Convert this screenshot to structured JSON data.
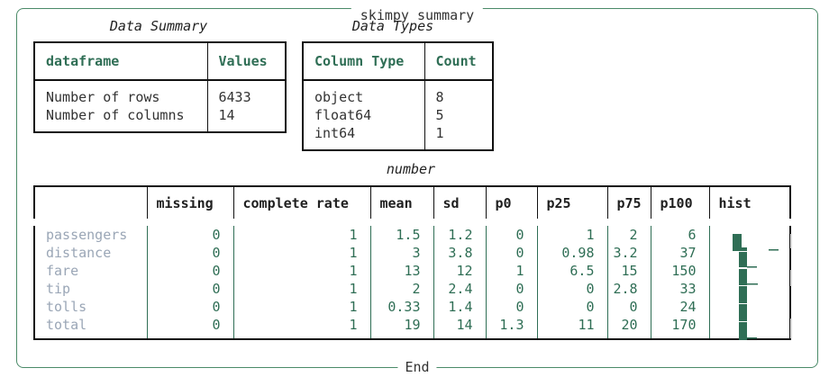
{
  "panel": {
    "title": "skimpy summary",
    "footer": "End"
  },
  "data_summary": {
    "caption": "Data Summary",
    "headers": [
      "dataframe",
      "Values"
    ],
    "rows": [
      [
        "Number of rows",
        "6433"
      ],
      [
        "Number of columns",
        "14"
      ]
    ]
  },
  "data_types": {
    "caption": "Data Types",
    "headers": [
      "Column Type",
      "Count"
    ],
    "rows": [
      [
        "object",
        "8"
      ],
      [
        "float64",
        "5"
      ],
      [
        "int64",
        "1"
      ]
    ]
  },
  "number": {
    "caption": "number",
    "headers": [
      "",
      "missing",
      "complete rate",
      "mean",
      "sd",
      "p0",
      "p25",
      "p75",
      "p100",
      "hist"
    ],
    "rows": [
      [
        "passengers",
        "0",
        "1",
        "1.5",
        "1.2",
        "0",
        "1",
        "2",
        "6"
      ],
      [
        "distance",
        "0",
        "1",
        "3",
        "3.8",
        "0",
        "0.98",
        "3.2",
        "37"
      ],
      [
        "fare",
        "0",
        "1",
        "13",
        "12",
        "1",
        "6.5",
        "15",
        "150"
      ],
      [
        "tip",
        "0",
        "1",
        "2",
        "2.4",
        "0",
        "0",
        "2.8",
        "33"
      ],
      [
        "tolls",
        "0",
        "1",
        "0.33",
        "1.4",
        "0",
        "0",
        "0",
        "24"
      ],
      [
        "total",
        "0",
        "1",
        "19",
        "14",
        "1.3",
        "11",
        "20",
        "170"
      ]
    ],
    "hist_color": "#2f6e55"
  }
}
